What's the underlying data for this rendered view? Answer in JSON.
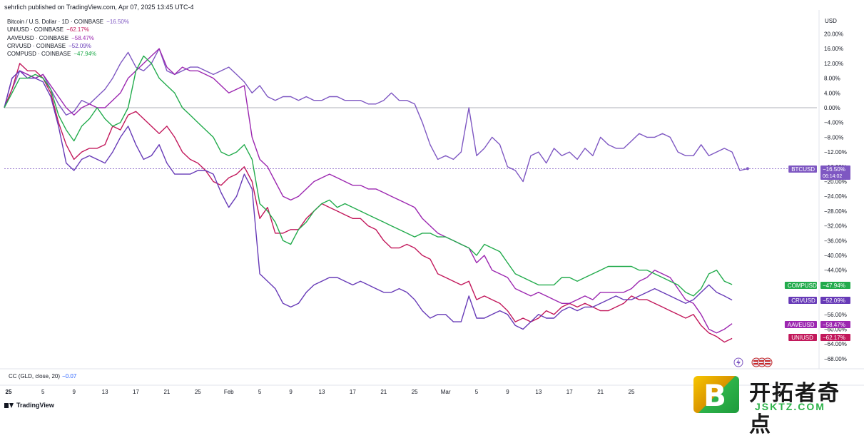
{
  "header": {
    "published": "sehrlich published on TradingView.com, Apr 07, 2025 13:45 UTC-4"
  },
  "legend": [
    {
      "name": "Bitcoin / U.S. Dollar · 1D · COINBASE",
      "value": "−16.50%",
      "color": "#7e57c2"
    },
    {
      "name": "UNIUSD · COINBASE",
      "value": "−62.17%",
      "color": "#c2185b"
    },
    {
      "name": "AAVEUSD · COINBASE",
      "value": "−58.47%",
      "color": "#9c27b0"
    },
    {
      "name": "CRVUSD · COINBASE",
      "value": "−52.09%",
      "color": "#673ab7"
    },
    {
      "name": "COMPUSD · COINBASE",
      "value": "−47.94%",
      "color": "#22ab4c"
    }
  ],
  "indicator": {
    "label": "CC (GLD, close, 20)",
    "value": "−0.07"
  },
  "footer": {
    "brand": "TradingView"
  },
  "watermark": {
    "badge": "B",
    "cn": "开拓者奇点",
    "en": "JSKTZ.COM"
  },
  "chart_data": {
    "type": "line",
    "ylabel": "USD",
    "ylim": [
      -72,
      24
    ],
    "y_ticks": [
      "20.00%",
      "16.00%",
      "12.00%",
      "8.00%",
      "4.00%",
      "0.00%",
      "−4.00%",
      "−8.00%",
      "−12.00%",
      "−16.00%",
      "−20.00%",
      "−24.00%",
      "−28.00%",
      "−32.00%",
      "−36.00%",
      "−40.00%",
      "−44.00%",
      "−48.00%",
      "−52.00%",
      "−56.00%",
      "−60.00%",
      "−64.00%",
      "−68.00%"
    ],
    "y_tick_values": [
      20,
      16,
      12,
      8,
      4,
      0,
      -4,
      -8,
      -12,
      -16,
      -20,
      -24,
      -28,
      -32,
      -36,
      -40,
      -44,
      -48,
      -52,
      -56,
      -60,
      -64,
      -68
    ],
    "x_ticks": [
      "25",
      "5",
      "9",
      "13",
      "17",
      "21",
      "25",
      "Feb",
      "5",
      "9",
      "13",
      "17",
      "21",
      "25",
      "Mar",
      "5",
      "9",
      "13",
      "17",
      "21",
      "25"
    ],
    "x_tick_days": [
      0,
      5,
      9,
      13,
      17,
      21,
      25,
      29,
      33,
      37,
      41,
      45,
      49,
      53,
      57,
      61,
      65,
      69,
      73,
      77,
      81
    ],
    "x_range": [
      0,
      95
    ],
    "btc_countdown": "06:14:02",
    "series": [
      {
        "name": "BTCUSD",
        "label": "−16.50%",
        "color": "#7e57c2",
        "values": [
          0,
          5,
          10,
          9,
          8,
          9,
          5,
          1,
          -2,
          -1,
          2,
          1,
          3,
          5,
          8,
          12,
          15,
          11,
          10,
          12,
          16,
          10,
          9,
          10,
          11,
          11,
          10,
          9,
          10,
          11,
          9,
          7,
          4,
          6,
          3,
          2,
          3,
          3,
          2,
          3,
          2,
          2,
          3,
          3,
          2,
          2,
          2,
          1,
          1,
          2,
          4,
          2,
          2,
          1,
          -4,
          -10,
          -14,
          -13,
          -14,
          -12,
          0,
          -13,
          -11,
          -8,
          -10,
          -16,
          -17,
          -20,
          -13,
          -12,
          -15,
          -11,
          -13,
          -12,
          -14,
          -11,
          -13,
          -8,
          -10,
          -11,
          -11,
          -9,
          -7,
          -8,
          -8,
          -7,
          -8,
          -12,
          -13,
          -13,
          -10,
          -13,
          -12,
          -11,
          -12,
          -17,
          -16.5
        ]
      },
      {
        "name": "UNIUSD",
        "label": "−62.17%",
        "color": "#c2185b",
        "values": [
          0,
          5,
          12,
          10,
          10,
          8,
          4,
          -4,
          -10,
          -14,
          -12,
          -11,
          -11,
          -10,
          -5,
          -6,
          -2,
          -1,
          -3,
          -5,
          -7,
          -5,
          -8,
          -12,
          -14,
          -15,
          -17,
          -20,
          -21,
          -19,
          -18,
          -16,
          -20,
          -30,
          -27,
          -34,
          -34,
          -33,
          -33,
          -30,
          -28,
          -26,
          -27,
          -28,
          -29,
          -30,
          -30,
          -32,
          -33,
          -36,
          -38,
          -38,
          -37,
          -38,
          -40,
          -41,
          -45,
          -46,
          -47,
          -48,
          -47,
          -52,
          -51,
          -52,
          -53,
          -55,
          -58,
          -57,
          -58,
          -57,
          -55,
          -56,
          -54,
          -53,
          -54,
          -53,
          -54,
          -55,
          -55,
          -54,
          -53,
          -51,
          -52,
          -52,
          -53,
          -54,
          -55,
          -56,
          -57,
          -56,
          -59,
          -61,
          -62,
          -63.5,
          -62.5
        ]
      },
      {
        "name": "AAVEUSD",
        "label": "−58.47%",
        "color": "#9c27b0",
        "values": [
          0,
          8,
          10,
          9,
          8,
          9,
          6,
          3,
          0,
          -2,
          0,
          1,
          0,
          0,
          2,
          4,
          8,
          10,
          12,
          14,
          16,
          11,
          9,
          11,
          10,
          10,
          9,
          8,
          6,
          4,
          5,
          6,
          -8,
          -14,
          -16,
          -20,
          -24,
          -25,
          -24,
          -22,
          -20,
          -19,
          -18,
          -19,
          -20,
          -21,
          -21,
          -22,
          -22,
          -23,
          -24,
          -25,
          -26,
          -27,
          -30,
          -32,
          -34,
          -35,
          -36,
          -37,
          -38,
          -42,
          -40,
          -44,
          -45,
          -46,
          -49,
          -50,
          -51,
          -50,
          -51,
          -52,
          -53,
          -53,
          -52,
          -51,
          -52,
          -50,
          -50,
          -50,
          -50,
          -49,
          -47,
          -46,
          -44,
          -45,
          -46,
          -49,
          -52,
          -53,
          -56,
          -60,
          -61,
          -60,
          -58.5
        ]
      },
      {
        "name": "CRVUSD",
        "label": "−52.09%",
        "color": "#673ab7",
        "values": [
          0,
          8,
          10,
          8,
          8,
          7,
          3,
          -5,
          -15,
          -17,
          -14,
          -13,
          -14,
          -15,
          -12,
          -8,
          -5,
          -10,
          -14,
          -13,
          -10,
          -15,
          -18,
          -18,
          -18,
          -17,
          -17,
          -18,
          -23,
          -27,
          -24,
          -18,
          -22,
          -45,
          -47,
          -49,
          -53,
          -54,
          -53,
          -50,
          -48,
          -47,
          -46,
          -46,
          -47,
          -48,
          -47,
          -48,
          -49,
          -50,
          -50,
          -49,
          -50,
          -52,
          -55,
          -57,
          -56,
          -56,
          -58,
          -58,
          -51,
          -57,
          -57,
          -56,
          -55,
          -56,
          -59,
          -60,
          -58,
          -56,
          -57,
          -57,
          -55,
          -54,
          -55,
          -54,
          -54,
          -53,
          -52,
          -51,
          -52,
          -52,
          -51,
          -50,
          -49,
          -50,
          -51,
          -52,
          -53,
          -52,
          -50,
          -48,
          -50,
          -51,
          -52.1
        ]
      },
      {
        "name": "COMPUSD",
        "label": "−47.94%",
        "color": "#22ab4c",
        "values": [
          0,
          4,
          8,
          8,
          9,
          8,
          5,
          -2,
          -6,
          -9,
          -5,
          -3,
          0,
          -3,
          -5,
          -4,
          0,
          10,
          14,
          12,
          8,
          6,
          4,
          0,
          -2,
          -4,
          -6,
          -8,
          -12,
          -13,
          -12,
          -10,
          -14,
          -26,
          -28,
          -31,
          -36,
          -37,
          -33,
          -31,
          -28,
          -26,
          -25,
          -27,
          -26,
          -27,
          -28,
          -29,
          -30,
          -31,
          -32,
          -33,
          -34,
          -35,
          -34,
          -34,
          -35,
          -35,
          -36,
          -37,
          -38,
          -40,
          -37,
          -38,
          -39,
          -42,
          -45,
          -46,
          -47,
          -48,
          -48,
          -48,
          -46,
          -46,
          -47,
          -46,
          -45,
          -44,
          -43,
          -43,
          -43,
          -43,
          -44,
          -44,
          -45,
          -46,
          -47,
          -48,
          -50,
          -51,
          -49,
          -45,
          -44,
          -47,
          -47.9
        ]
      }
    ]
  }
}
